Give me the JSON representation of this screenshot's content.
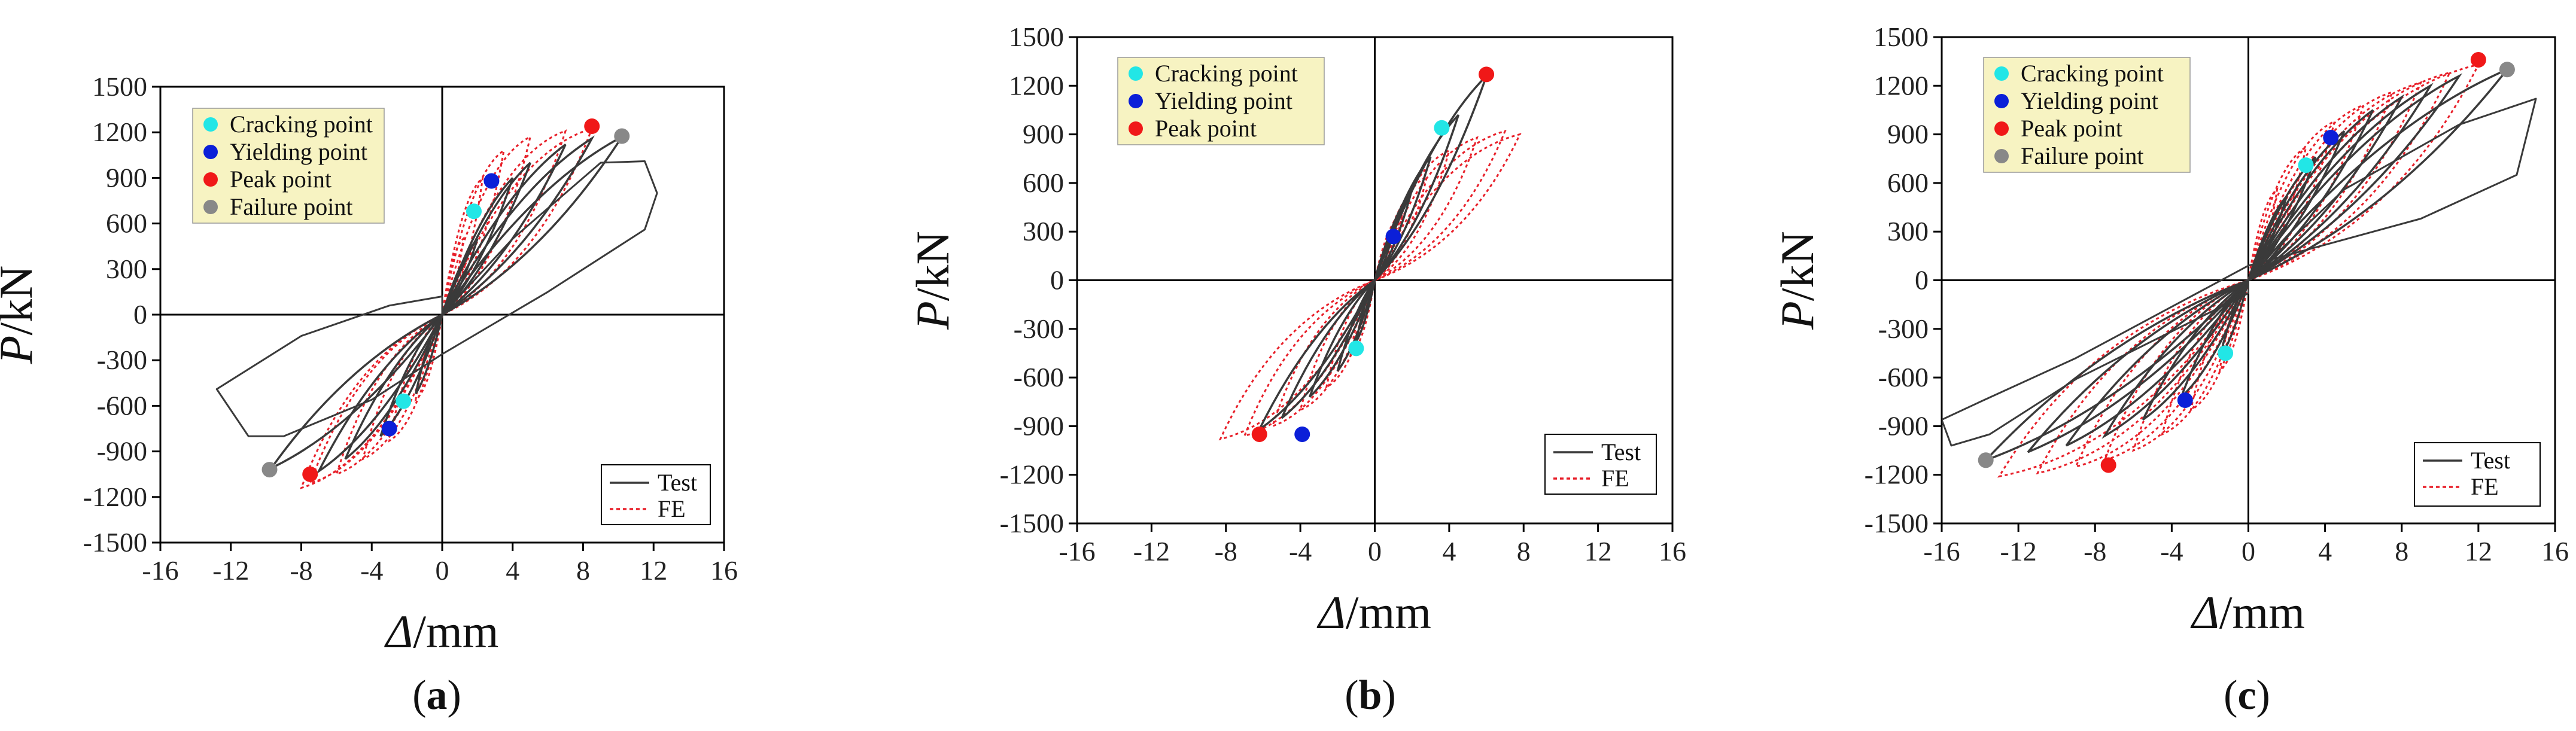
{
  "figure": {
    "panels": [
      {
        "label": "a"
      },
      {
        "label": "b"
      },
      {
        "label": "c"
      }
    ]
  },
  "colors": {
    "test": "#3a3a3a",
    "fe": "#e8202a",
    "cracking": "#22e6e6",
    "yielding": "#0b1fd8",
    "peak": "#f01818",
    "failure": "#888888",
    "legend_bg": "#f7f3c2"
  },
  "chart_data": [
    {
      "type": "line",
      "panel": "a",
      "xlabel_sym": "Δ",
      "xlabel_unit": "/mm",
      "ylabel_sym": "P",
      "ylabel_unit": "/kN",
      "xlim": [
        -16,
        16
      ],
      "ylim": [
        -1500,
        1500
      ],
      "xticks": [
        -16,
        -12,
        -8,
        -4,
        0,
        4,
        8,
        12,
        16
      ],
      "yticks": [
        -1500,
        -1200,
        -900,
        -600,
        -300,
        0,
        300,
        600,
        900,
        1200,
        1500
      ],
      "series": [
        {
          "name": "Test",
          "style": "solid",
          "loops": [
            [
              2,
              500
            ],
            [
              4,
              900
            ],
            [
              5,
              1000
            ],
            [
              7,
              1120
            ],
            [
              8.5,
              1160
            ],
            [
              10.2,
              1170
            ],
            [
              -1.5,
              -520
            ],
            [
              -3.5,
              -800
            ],
            [
              -5.5,
              -950
            ],
            [
              -7,
              -1030
            ],
            [
              -9.7,
              -1010
            ]
          ],
          "envelope": [
            [
              0,
              0
            ],
            [
              4,
              500
            ],
            [
              9,
              1000
            ],
            [
              11.5,
              1010
            ],
            [
              12.2,
              800
            ],
            [
              11.5,
              560
            ],
            [
              6,
              150
            ],
            [
              0,
              -260
            ],
            [
              -4,
              -560
            ],
            [
              -9,
              -800
            ],
            [
              -11,
              -800
            ],
            [
              -12.8,
              -490
            ],
            [
              -8,
              -140
            ],
            [
              -3,
              60
            ],
            [
              0,
              120
            ]
          ]
        },
        {
          "name": "FE",
          "style": "dotted",
          "loops": [
            [
              1.2,
              500
            ],
            [
              2.3,
              900
            ],
            [
              3.5,
              1080
            ],
            [
              5,
              1170
            ],
            [
              7,
              1210
            ],
            [
              8.5,
              1225
            ],
            [
              -1.5,
              -560
            ],
            [
              -3,
              -830
            ],
            [
              -4.5,
              -950
            ],
            [
              -6,
              -1050
            ],
            [
              -7.5,
              -1110
            ],
            [
              -8,
              -1140
            ]
          ]
        }
      ],
      "points": {
        "cracking": [
          [
            1.8,
            680
          ],
          [
            -2.2,
            -570
          ]
        ],
        "yielding": [
          [
            2.8,
            880
          ],
          [
            -3,
            -750
          ]
        ],
        "peak": [
          [
            8.5,
            1240
          ],
          [
            -7.5,
            -1050
          ]
        ],
        "failure": [
          [
            10.2,
            1175
          ],
          [
            -9.8,
            -1020
          ]
        ]
      },
      "legend_markers": [
        "Cracking point",
        "Yielding point",
        "Peak point",
        "Failure point"
      ],
      "legend_lines": [
        "Test",
        "FE"
      ]
    },
    {
      "type": "line",
      "panel": "b",
      "xlabel_sym": "Δ",
      "xlabel_unit": "/mm",
      "ylabel_sym": "P",
      "ylabel_unit": "/kN",
      "xlim": [
        -16,
        16
      ],
      "ylim": [
        -1500,
        1500
      ],
      "xticks": [
        -16,
        -12,
        -8,
        -4,
        0,
        4,
        8,
        12,
        16
      ],
      "yticks": [
        -1500,
        -1200,
        -900,
        -600,
        -300,
        0,
        300,
        600,
        900,
        1200,
        1500
      ],
      "series": [
        {
          "name": "Test",
          "style": "solid",
          "loops": [
            [
              1,
              300
            ],
            [
              2,
              560
            ],
            [
              3,
              760
            ],
            [
              4.5,
              1020
            ],
            [
              6,
              1260
            ],
            [
              -1,
              -380
            ],
            [
              -2,
              -560
            ],
            [
              -3.5,
              -720
            ],
            [
              -5,
              -850
            ],
            [
              -6.2,
              -920
            ]
          ],
          "envelope": []
        },
        {
          "name": "FE",
          "style": "dotted",
          "loops": [
            [
              1.5,
              420
            ],
            [
              2.8,
              640
            ],
            [
              4,
              800
            ],
            [
              5.5,
              880
            ],
            [
              7,
              920
            ],
            [
              7.8,
              900
            ],
            [
              -1.3,
              -460
            ],
            [
              -2.6,
              -660
            ],
            [
              -4,
              -800
            ],
            [
              -5.5,
              -900
            ],
            [
              -7,
              -960
            ],
            [
              -8.3,
              -980
            ]
          ]
        }
      ],
      "points": {
        "cracking": [
          [
            3.6,
            940
          ],
          [
            -1,
            -420
          ]
        ],
        "yielding": [
          [
            1,
            270
          ],
          [
            -3.9,
            -950
          ]
        ],
        "peak": [
          [
            6,
            1270
          ],
          [
            -6.2,
            -950
          ]
        ]
      },
      "legend_markers": [
        "Cracking point",
        "Yielding point",
        "Peak point"
      ],
      "legend_lines": [
        "Test",
        "FE"
      ]
    },
    {
      "type": "line",
      "panel": "c",
      "xlabel_sym": "Δ",
      "xlabel_unit": "/mm",
      "ylabel_sym": "P",
      "ylabel_unit": "/kN",
      "xlim": [
        -16,
        16
      ],
      "ylim": [
        -1500,
        1500
      ],
      "xticks": [
        -16,
        -12,
        -8,
        -4,
        0,
        4,
        8,
        12,
        16
      ],
      "yticks": [
        -1500,
        -1200,
        -900,
        -600,
        -300,
        0,
        300,
        600,
        900,
        1200,
        1500
      ],
      "series": [
        {
          "name": "Test",
          "style": "solid",
          "loops": [
            [
              2,
              520
            ],
            [
              3.5,
              760
            ],
            [
              5,
              920
            ],
            [
              6.5,
              1050
            ],
            [
              8,
              1130
            ],
            [
              9.5,
              1200
            ],
            [
              11,
              1260
            ],
            [
              13.5,
              1300
            ],
            [
              -1.5,
              -480
            ],
            [
              -3.5,
              -720
            ],
            [
              -5.5,
              -860
            ],
            [
              -7.5,
              -960
            ],
            [
              -9.5,
              -1020
            ],
            [
              -11.5,
              -1060
            ],
            [
              -13.7,
              -1110
            ]
          ],
          "envelope": [
            [
              0,
              0
            ],
            [
              5,
              560
            ],
            [
              11,
              960
            ],
            [
              15,
              1120
            ],
            [
              14,
              650
            ],
            [
              9,
              380
            ],
            [
              0,
              90
            ],
            [
              -9,
              -480
            ],
            [
              -14,
              -750
            ],
            [
              -16,
              -860
            ],
            [
              -15.5,
              -1020
            ],
            [
              -13.5,
              -950
            ],
            [
              -9,
              -610
            ],
            [
              0,
              -80
            ]
          ]
        },
        {
          "name": "FE",
          "style": "dotted",
          "loops": [
            [
              1.5,
              560
            ],
            [
              3,
              820
            ],
            [
              4.5,
              980
            ],
            [
              6,
              1080
            ],
            [
              7.5,
              1160
            ],
            [
              9,
              1220
            ],
            [
              10.5,
              1280
            ],
            [
              12,
              1330
            ],
            [
              -1.5,
              -560
            ],
            [
              -3,
              -800
            ],
            [
              -4.5,
              -950
            ],
            [
              -6,
              -1050
            ],
            [
              -7.5,
              -1110
            ],
            [
              -9,
              -1150
            ],
            [
              -11,
              -1190
            ],
            [
              -13,
              -1210
            ]
          ]
        }
      ],
      "points": {
        "cracking": [
          [
            3,
            710
          ],
          [
            -1.2,
            -450
          ]
        ],
        "yielding": [
          [
            4.3,
            880
          ],
          [
            -3.3,
            -740
          ]
        ],
        "peak": [
          [
            12,
            1360
          ],
          [
            -7.3,
            -1140
          ]
        ],
        "failure": [
          [
            13.5,
            1300
          ],
          [
            -13.7,
            -1110
          ]
        ]
      },
      "legend_markers": [
        "Cracking point",
        "Yielding point",
        "Peak point",
        "Failure point"
      ],
      "legend_lines": [
        "Test",
        "FE"
      ]
    }
  ]
}
